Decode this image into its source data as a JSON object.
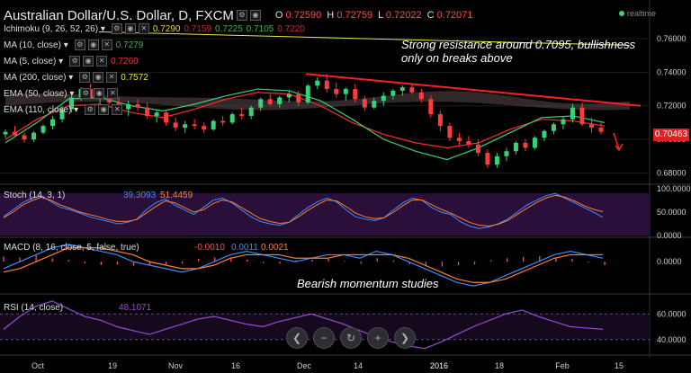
{
  "header": {
    "title": "Australian Dollar/U.S. Dollar, D, FXCM",
    "ohlc": [
      {
        "key": "O",
        "value": "0.72590"
      },
      {
        "key": "H",
        "value": "0.72759"
      },
      {
        "key": "L",
        "value": "0.72022"
      },
      {
        "key": "C",
        "value": "0.72071"
      }
    ],
    "realtime": "realtime"
  },
  "indicators": [
    {
      "label": "Ichimoku (9, 26, 52, 26)",
      "values": [
        {
          "v": "0.7290",
          "c": "#e8d84a"
        },
        {
          "v": "0.7159",
          "c": "#c03030"
        },
        {
          "v": "0.7225",
          "c": "#4caf50"
        },
        {
          "v": "0.7105",
          "c": "#4caf50"
        },
        {
          "v": "0.7220",
          "c": "#c03030"
        }
      ]
    },
    {
      "label": "MA (10, close)",
      "values": [
        {
          "v": "0.7279",
          "c": "#4caf50"
        }
      ]
    },
    {
      "label": "MA (5, close)",
      "values": [
        {
          "v": "0.7260",
          "c": "#ff3030"
        }
      ]
    },
    {
      "label": "MA (200, close)",
      "values": [
        {
          "v": "0.7572",
          "c": "#e8e84a"
        }
      ]
    },
    {
      "label": "EMA (50, close)",
      "values": []
    },
    {
      "label": "EMA (110, close)",
      "values": []
    }
  ],
  "annotations": {
    "resistance": "Strong resistance around 0.7095, bullishness only on breaks above",
    "momentum": "Bearish momentum studies"
  },
  "last_price": "0.70463",
  "zoom_controls": [
    "left-arrow-icon",
    "zoom-out-icon",
    "reset-icon",
    "zoom-in-icon",
    "right-arrow-icon"
  ],
  "colors": {
    "bull": "#3ad07a",
    "bear": "#ff3b3b",
    "ma200": "#e8e84a",
    "stoch_k": "#3b8cff",
    "stoch_d": "#ff8030",
    "macd_hist": "#ff4b6b",
    "rsi": "#9a4ad8",
    "panel_bg": "#2a0f3a"
  },
  "chart_data": [
    {
      "type": "candlestick",
      "title": "Australian Dollar/U.S. Dollar, D, FXCM",
      "x_tick_labels": [
        "Oct",
        "19",
        "Nov",
        "16",
        "Dec",
        "14",
        "2016",
        "18",
        "Feb",
        "15"
      ],
      "y_tick_labels": [
        "0.76000",
        "0.74000",
        "0.72000",
        "0.70000",
        "0.68000"
      ],
      "ylim": [
        0.676,
        0.768
      ],
      "candles": [
        [
          0.703,
          0.706,
          0.701,
          0.7045
        ],
        [
          0.7045,
          0.708,
          0.702,
          0.7025
        ],
        [
          0.7025,
          0.704,
          0.698,
          0.7
        ],
        [
          0.7,
          0.705,
          0.6985,
          0.704
        ],
        [
          0.704,
          0.709,
          0.703,
          0.708
        ],
        [
          0.708,
          0.714,
          0.706,
          0.712
        ],
        [
          0.712,
          0.72,
          0.71,
          0.718
        ],
        [
          0.718,
          0.726,
          0.716,
          0.725
        ],
        [
          0.725,
          0.731,
          0.723,
          0.73
        ],
        [
          0.73,
          0.733,
          0.724,
          0.725
        ],
        [
          0.725,
          0.729,
          0.72,
          0.727
        ],
        [
          0.727,
          0.73,
          0.721,
          0.722
        ],
        [
          0.722,
          0.725,
          0.715,
          0.718
        ],
        [
          0.718,
          0.723,
          0.714,
          0.721
        ],
        [
          0.721,
          0.724,
          0.717,
          0.719
        ],
        [
          0.719,
          0.722,
          0.712,
          0.714
        ],
        [
          0.714,
          0.718,
          0.71,
          0.716
        ],
        [
          0.716,
          0.717,
          0.708,
          0.71
        ],
        [
          0.71,
          0.713,
          0.705,
          0.707
        ],
        [
          0.707,
          0.711,
          0.704,
          0.709
        ],
        [
          0.709,
          0.712,
          0.706,
          0.708
        ],
        [
          0.708,
          0.71,
          0.704,
          0.706
        ],
        [
          0.706,
          0.712,
          0.705,
          0.711
        ],
        [
          0.711,
          0.714,
          0.708,
          0.71
        ],
        [
          0.71,
          0.716,
          0.709,
          0.715
        ],
        [
          0.715,
          0.719,
          0.712,
          0.714
        ],
        [
          0.714,
          0.72,
          0.712,
          0.719
        ],
        [
          0.719,
          0.725,
          0.717,
          0.724
        ],
        [
          0.724,
          0.727,
          0.72,
          0.721
        ],
        [
          0.721,
          0.726,
          0.719,
          0.725
        ],
        [
          0.725,
          0.729,
          0.722,
          0.727
        ],
        [
          0.727,
          0.729,
          0.72,
          0.722
        ],
        [
          0.722,
          0.733,
          0.721,
          0.732
        ],
        [
          0.732,
          0.737,
          0.73,
          0.735
        ],
        [
          0.735,
          0.739,
          0.728,
          0.73
        ],
        [
          0.73,
          0.734,
          0.725,
          0.727
        ],
        [
          0.727,
          0.731,
          0.723,
          0.73
        ],
        [
          0.73,
          0.733,
          0.722,
          0.724
        ],
        [
          0.724,
          0.726,
          0.717,
          0.719
        ],
        [
          0.719,
          0.725,
          0.718,
          0.723
        ],
        [
          0.723,
          0.728,
          0.72,
          0.726
        ],
        [
          0.726,
          0.73,
          0.724,
          0.729
        ],
        [
          0.729,
          0.732,
          0.726,
          0.731
        ],
        [
          0.731,
          0.733,
          0.727,
          0.728
        ],
        [
          0.728,
          0.73,
          0.722,
          0.724
        ],
        [
          0.724,
          0.726,
          0.713,
          0.715
        ],
        [
          0.715,
          0.717,
          0.705,
          0.708
        ],
        [
          0.708,
          0.71,
          0.699,
          0.701
        ],
        [
          0.701,
          0.704,
          0.696,
          0.699
        ],
        [
          0.699,
          0.702,
          0.695,
          0.697
        ],
        [
          0.697,
          0.7,
          0.69,
          0.692
        ],
        [
          0.692,
          0.694,
          0.683,
          0.685
        ],
        [
          0.685,
          0.692,
          0.683,
          0.69
        ],
        [
          0.69,
          0.695,
          0.687,
          0.693
        ],
        [
          0.693,
          0.699,
          0.691,
          0.698
        ],
        [
          0.698,
          0.7,
          0.693,
          0.695
        ],
        [
          0.695,
          0.702,
          0.694,
          0.701
        ],
        [
          0.701,
          0.706,
          0.699,
          0.705
        ],
        [
          0.705,
          0.71,
          0.703,
          0.709
        ],
        [
          0.709,
          0.714,
          0.706,
          0.712
        ],
        [
          0.712,
          0.721,
          0.71,
          0.719
        ],
        [
          0.719,
          0.722,
          0.708,
          0.709
        ],
        [
          0.709,
          0.713,
          0.704,
          0.707
        ],
        [
          0.707,
          0.71,
          0.703,
          0.7046
        ]
      ],
      "series": [
        {
          "name": "MA (200, close)",
          "values": [
            0.764,
            0.756
          ]
        },
        {
          "name": "EMA (50, close)",
          "values": [
            0.7,
            0.712,
            0.72,
            0.721,
            0.716,
            0.713,
            0.718,
            0.724,
            0.728,
            0.727,
            0.72,
            0.71,
            0.703,
            0.698,
            0.695,
            0.698,
            0.706,
            0.712,
            0.711,
            0.708
          ]
        },
        {
          "name": "EMA (110, close)",
          "values": [
            0.698,
            0.71,
            0.724,
            0.725,
            0.72,
            0.717,
            0.721,
            0.726,
            0.73,
            0.729,
            0.723,
            0.712,
            0.7,
            0.693,
            0.688,
            0.695,
            0.704,
            0.713,
            0.714,
            0.71
          ]
        }
      ]
    },
    {
      "type": "line",
      "title": "Stoch (14, 3, 1)",
      "values_text": [
        "39.3093",
        "51.4459"
      ],
      "y_tick_labels": [
        "100.0000",
        "50.0000",
        "0.0000"
      ],
      "ylim": [
        0,
        100
      ],
      "series": [
        {
          "name": "%K",
          "values": [
            40,
            55,
            70,
            80,
            85,
            72,
            60,
            55,
            48,
            40,
            35,
            30,
            25,
            28,
            35,
            55,
            70,
            78,
            65,
            55,
            45,
            60,
            75,
            80,
            70,
            55,
            40,
            30,
            25,
            22,
            28,
            45,
            60,
            72,
            80,
            72,
            55,
            40,
            35,
            32,
            38,
            55,
            70,
            80,
            75,
            60,
            50,
            45,
            30,
            20,
            15,
            18,
            25,
            35,
            50,
            65,
            75,
            85,
            90,
            80,
            70,
            60,
            50,
            39
          ]
        },
        {
          "name": "%D",
          "values": [
            38,
            50,
            65,
            75,
            82,
            75,
            65,
            58,
            50,
            45,
            40,
            34,
            30,
            30,
            34,
            48,
            62,
            74,
            70,
            60,
            50,
            55,
            68,
            76,
            72,
            60,
            48,
            36,
            30,
            26,
            28,
            40,
            54,
            66,
            76,
            74,
            62,
            48,
            40,
            36,
            38,
            50,
            64,
            76,
            76,
            66,
            56,
            48,
            38,
            28,
            22,
            20,
            24,
            32,
            45,
            58,
            70,
            80,
            86,
            82,
            74,
            64,
            56,
            51
          ]
        }
      ]
    },
    {
      "type": "bar",
      "title": "MACD (8, 16, close, 5, false, true)",
      "values_text": [
        "-0.0010",
        "0.0011",
        "0.0021"
      ],
      "y_tick_labels": [
        "0.0000"
      ],
      "ylim": [
        -0.008,
        0.006
      ],
      "series": [
        {
          "name": "MACD",
          "values": [
            -0.002,
            0.0,
            0.002,
            0.004,
            0.005,
            0.004,
            0.003,
            0.002,
            0.0,
            -0.001,
            -0.002,
            -0.003,
            -0.002,
            0.0,
            0.002,
            0.003,
            0.002,
            0.001,
            0.0,
            0.001,
            0.002,
            0.002,
            0.001,
            0.003,
            0.002,
            0.0,
            -0.002,
            -0.004,
            -0.006,
            -0.007,
            -0.006,
            -0.004,
            -0.002,
            0.0,
            0.002,
            0.003,
            0.002,
            0.001
          ]
        },
        {
          "name": "Signal",
          "values": [
            -0.003,
            -0.002,
            0.0,
            0.002,
            0.004,
            0.004,
            0.004,
            0.003,
            0.002,
            0.0,
            -0.001,
            -0.002,
            -0.002,
            -0.001,
            0.001,
            0.002,
            0.002,
            0.002,
            0.001,
            0.001,
            0.001,
            0.002,
            0.002,
            0.002,
            0.002,
            0.001,
            -0.001,
            -0.003,
            -0.005,
            -0.006,
            -0.006,
            -0.005,
            -0.003,
            -0.001,
            0.001,
            0.002,
            0.002,
            0.002
          ]
        },
        {
          "name": "Histogram",
          "values": [
            0.0015,
            0.0012,
            0.0018,
            0.001,
            0.0005,
            -0.0005,
            -0.001,
            -0.0008,
            -0.0012,
            -0.001,
            -0.0008,
            -0.0006,
            0.0008,
            0.0012,
            0.001,
            0.0006,
            -0.0004,
            -0.0006,
            0.0004,
            0.0006,
            0.0008,
            0.0002,
            -0.0006,
            0.001,
            0.0004,
            -0.0008,
            -0.0012,
            -0.0014,
            -0.001,
            -0.0008,
            0.0004,
            0.001,
            0.0014,
            0.0016,
            0.0012,
            0.0008,
            -0.0002,
            -0.001
          ]
        }
      ]
    },
    {
      "type": "line",
      "title": "RSI (14, close)",
      "values_text": [
        "48.1071"
      ],
      "y_tick_labels": [
        "60.0000",
        "40.0000"
      ],
      "ylim": [
        30,
        70
      ],
      "series": [
        {
          "name": "RSI",
          "values": [
            48,
            58,
            66,
            70,
            64,
            58,
            55,
            50,
            47,
            44,
            48,
            52,
            56,
            58,
            55,
            52,
            50,
            54,
            57,
            60,
            56,
            52,
            47,
            42,
            38,
            35,
            33,
            38,
            44,
            50,
            55,
            60,
            63,
            58,
            54,
            50,
            49,
            48
          ]
        }
      ]
    }
  ]
}
